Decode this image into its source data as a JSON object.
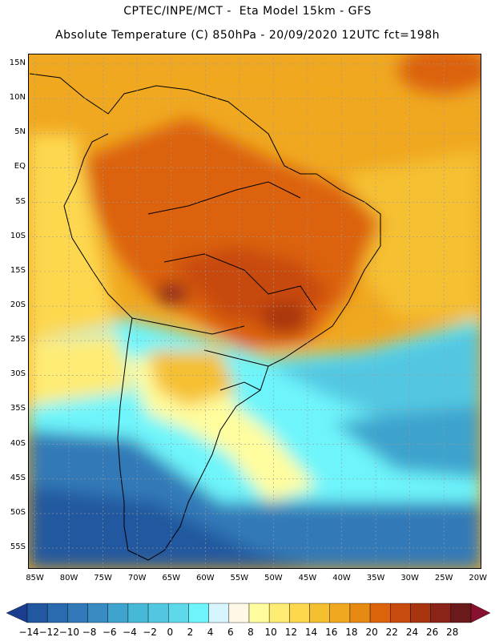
{
  "header": {
    "title_line1": "CPTEC/INPE/MCT -  Eta Model 15km - GFS",
    "title_line2": "Absolute Temperature (C) 850hPa - 20/09/2020 12UTC fct=198h"
  },
  "map": {
    "lat_labels": [
      "15N",
      "10N",
      "5N",
      "EQ",
      "5S",
      "10S",
      "15S",
      "20S",
      "25S",
      "30S",
      "35S",
      "40S",
      "45S",
      "50S",
      "55S"
    ],
    "lat_values": [
      15,
      10,
      5,
      0,
      -5,
      -10,
      -15,
      -20,
      -25,
      -30,
      -35,
      -40,
      -45,
      -50,
      -55
    ],
    "lon_labels": [
      "85W",
      "80W",
      "75W",
      "70W",
      "65W",
      "60W",
      "55W",
      "50W",
      "45W",
      "40W",
      "35W",
      "30W",
      "25W",
      "20W"
    ],
    "lon_values": [
      -85,
      -80,
      -75,
      -70,
      -65,
      -60,
      -55,
      -50,
      -45,
      -40,
      -35,
      -30,
      -25,
      -20
    ],
    "lat_range": [
      -58,
      16.5
    ],
    "lon_range": [
      -86,
      -19.5
    ],
    "grid": true
  },
  "colorbar": {
    "labels": [
      "-14",
      "-12",
      "-10",
      "-8",
      "-6",
      "-4",
      "-2",
      "0",
      "2",
      "4",
      "6",
      "8",
      "10",
      "12",
      "14",
      "16",
      "18",
      "20",
      "22",
      "24",
      "26",
      "28"
    ],
    "colors": [
      "#1a3d8f",
      "#21589f",
      "#2a6aae",
      "#3179b8",
      "#388cc2",
      "#3ea3cd",
      "#48b8d8",
      "#52c7e2",
      "#5ed9ec",
      "#6ef5fb",
      "#d6f5ff",
      "#fff8e6",
      "#fffd9e",
      "#ffec75",
      "#fdd84f",
      "#f5c030",
      "#f0a820",
      "#e68a12",
      "#dc620c",
      "#c84a0e",
      "#a83410",
      "#8a2418",
      "#6a1a1a",
      "#8a1030"
    ]
  }
}
